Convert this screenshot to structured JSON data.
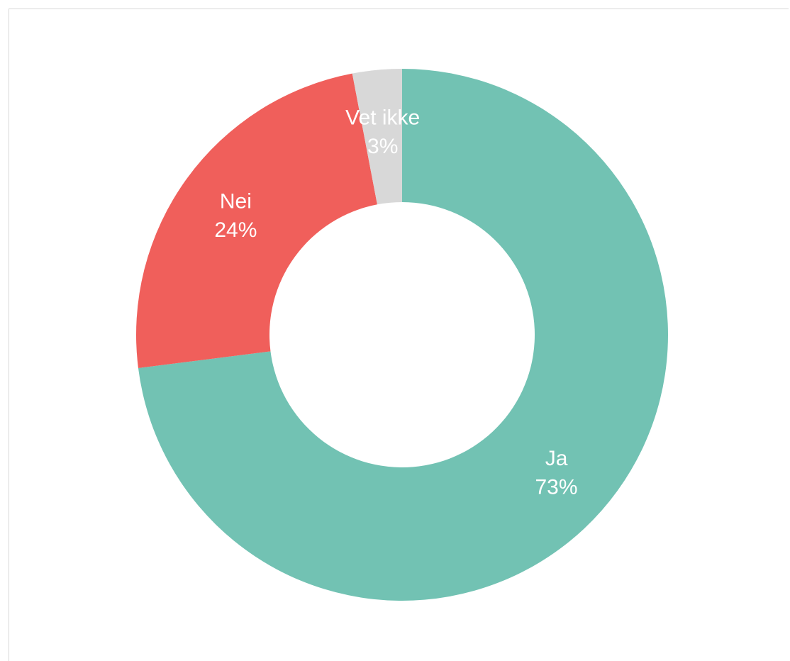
{
  "chart_data": {
    "type": "pie",
    "donut": true,
    "title": "",
    "slices": [
      {
        "label": "Ja",
        "value": 73,
        "value_label": "73%",
        "color": "#72c2b3"
      },
      {
        "label": "Nei",
        "value": 24,
        "value_label": "24%",
        "color": "#f05f5b"
      },
      {
        "label": "Vet ikke",
        "value": 3,
        "value_label": "3%",
        "color": "#d8d8d8"
      }
    ],
    "legend": "none",
    "start": "top",
    "direction": "clockwise"
  }
}
